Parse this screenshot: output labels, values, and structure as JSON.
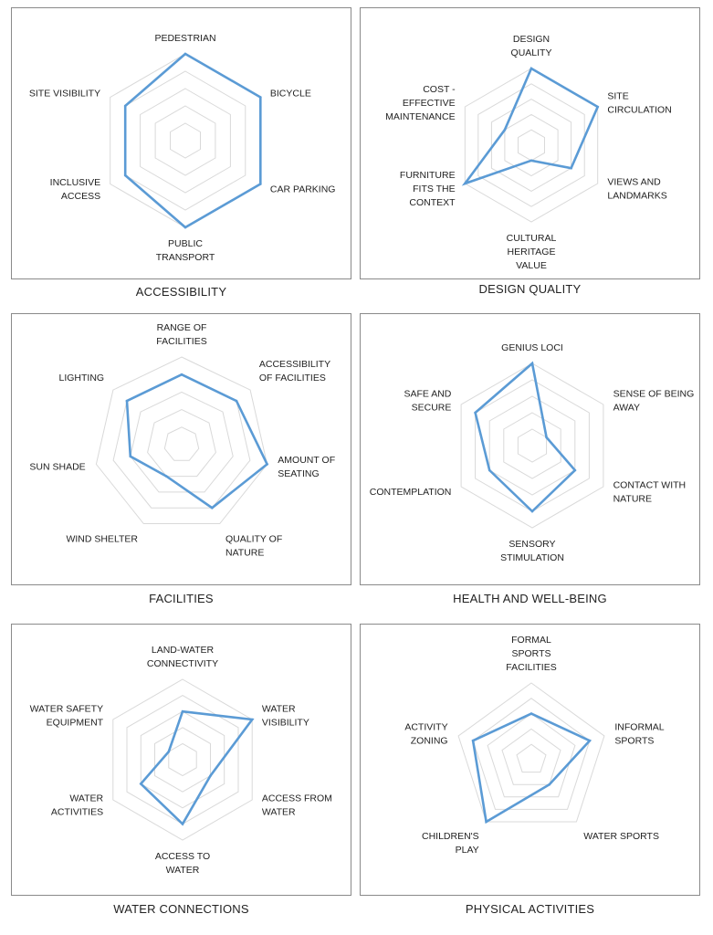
{
  "style": {
    "grid_color": "#d9d9d9",
    "series_color": "#5b9bd5"
  },
  "chart_data": [
    {
      "type": "radar",
      "title": "ACCESSIBILITY",
      "levels": 5,
      "rmax": 5,
      "axes": [
        {
          "label": [
            "PEDESTRIAN"
          ],
          "value": 5
        },
        {
          "label": [
            "BICYCLE"
          ],
          "value": 5
        },
        {
          "label": [
            "CAR PARKING"
          ],
          "value": 5
        },
        {
          "label": [
            "PUBLIC",
            "TRANSPORT"
          ],
          "value": 5
        },
        {
          "label": [
            "INCLUSIVE",
            "ACCESS"
          ],
          "value": 4
        },
        {
          "label": [
            "SITE VISIBILITY"
          ],
          "value": 4
        }
      ]
    },
    {
      "type": "radar",
      "title": "DESIGN QUALITY",
      "levels": 5,
      "rmax": 5,
      "axes": [
        {
          "label": [
            "DESIGN",
            "QUALITY"
          ],
          "value": 5
        },
        {
          "label": [
            "SITE",
            "CIRCULATION"
          ],
          "value": 5
        },
        {
          "label": [
            "VIEWS AND",
            "LANDMARKS"
          ],
          "value": 3
        },
        {
          "label": [
            "CULTURAL",
            "HERITAGE",
            "VALUE"
          ],
          "value": 1
        },
        {
          "label": [
            "FURNITURE",
            "FITS THE",
            "CONTEXT"
          ],
          "value": 5
        },
        {
          "label": [
            "COST -",
            "EFFECTIVE",
            "MAINTENANCE"
          ],
          "value": 2
        }
      ]
    },
    {
      "type": "radar",
      "title": "FACILITIES",
      "levels": 5,
      "rmax": 5,
      "axes": [
        {
          "label": [
            "RANGE OF",
            "FACILITIES"
          ],
          "value": 4
        },
        {
          "label": [
            "ACCESSIBILITY",
            "OF FACILITIES"
          ],
          "value": 4
        },
        {
          "label": [
            "AMOUNT OF",
            "SEATING"
          ],
          "value": 5
        },
        {
          "label": [
            "QUALITY OF",
            "NATURE"
          ],
          "value": 4
        },
        {
          "label": [
            "WIND SHELTER"
          ],
          "value": 2
        },
        {
          "label": [
            "SUN SHADE"
          ],
          "value": 3
        },
        {
          "label": [
            "LIGHTING"
          ],
          "value": 4
        }
      ]
    },
    {
      "type": "radar",
      "title": "HEALTH AND WELL-BEING",
      "levels": 5,
      "rmax": 5,
      "axes": [
        {
          "label": [
            "GENIUS LOCI"
          ],
          "value": 5
        },
        {
          "label": [
            "SENSE OF BEING",
            "AWAY"
          ],
          "value": 1
        },
        {
          "label": [
            "CONTACT WITH",
            "NATURE"
          ],
          "value": 3
        },
        {
          "label": [
            "SENSORY",
            "STIMULATION"
          ],
          "value": 4
        },
        {
          "label": [
            "CONTEMPLATION"
          ],
          "value": 3
        },
        {
          "label": [
            "SAFE AND",
            "SECURE"
          ],
          "value": 4
        }
      ]
    },
    {
      "type": "radar",
      "title": "WATER CONNECTIONS",
      "levels": 5,
      "rmax": 5,
      "axes": [
        {
          "label": [
            "LAND-WATER",
            "CONNECTIVITY"
          ],
          "value": 3
        },
        {
          "label": [
            "WATER",
            "VISIBILITY"
          ],
          "value": 5
        },
        {
          "label": [
            "ACCESS FROM",
            "WATER"
          ],
          "value": 2
        },
        {
          "label": [
            "ACCESS TO",
            "WATER"
          ],
          "value": 4
        },
        {
          "label": [
            "WATER",
            "ACTIVITIES"
          ],
          "value": 3
        },
        {
          "label": [
            "WATER SAFETY",
            "EQUIPMENT"
          ],
          "value": 1
        }
      ]
    },
    {
      "type": "radar",
      "title": "PHYSICAL ACTIVITIES",
      "levels": 5,
      "rmax": 5,
      "axes": [
        {
          "label": [
            "FORMAL",
            "SPORTS",
            "FACILITIES"
          ],
          "value": 3
        },
        {
          "label": [
            "INFORMAL",
            "SPORTS"
          ],
          "value": 4
        },
        {
          "label": [
            "WATER SPORTS"
          ],
          "value": 2
        },
        {
          "label": [
            "CHILDREN'S",
            "PLAY"
          ],
          "value": 5
        },
        {
          "label": [
            "ACTIVITY",
            "ZONING"
          ],
          "value": 4
        }
      ]
    }
  ]
}
